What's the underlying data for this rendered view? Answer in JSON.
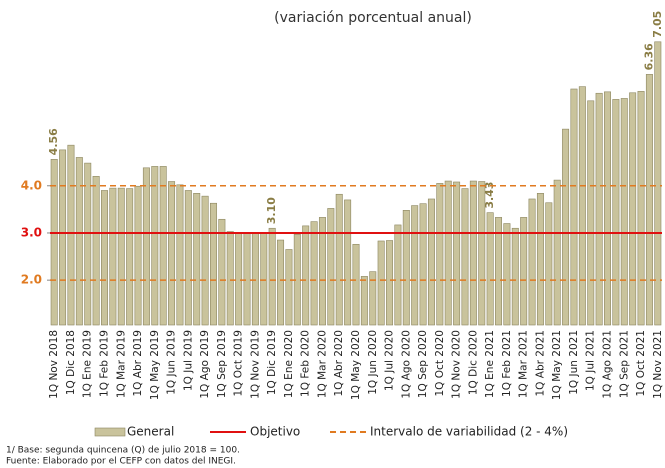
{
  "chart_data": {
    "type": "bar",
    "subtitle": "(variación porcentual anual)",
    "categories": [
      "1Q Nov 2018",
      null,
      "1Q Dic 2018",
      null,
      "1Q Ene 2019",
      null,
      "1Q Feb 2019",
      null,
      "1Q Mar 2019",
      null,
      "1Q Abr 2019",
      null,
      "1Q May 2019",
      null,
      "1Q Jun 2019",
      null,
      "1Q Jul 2019",
      null,
      "1Q Ago 2019",
      null,
      "1Q Sep 2019",
      null,
      "1Q Oct 2019",
      null,
      "1Q Nov 2019",
      null,
      "1Q Dic 2019",
      null,
      "1Q Ene 2020",
      null,
      "1Q Feb 2020",
      null,
      "1Q Mar 2020",
      null,
      "1Q Abr 2020",
      null,
      "1Q May 2020",
      null,
      "1Q Jun 2020",
      null,
      "1Q Jul 2020",
      null,
      "1Q Ago 2020",
      null,
      "1Q Sep 2020",
      null,
      "1Q Oct 2020",
      null,
      "1Q Nov 2020",
      null,
      "1Q Dic 2020",
      null,
      "1Q Ene 2021",
      null,
      "1Q Feb 2021",
      null,
      "1Q Mar 2021",
      null,
      "1Q Abr 2021",
      null,
      "1Q May 2021",
      null,
      "1Q Jun 2021",
      null,
      "1Q Jul 2021",
      null,
      "1Q Ago 2021",
      null,
      "1Q Sep 2021",
      null,
      "1Q Oct 2021",
      null,
      "1Q Nov 2021"
    ],
    "series": [
      {
        "name": "General",
        "color": "#c9c39c",
        "values": [
          4.56,
          4.76,
          4.86,
          4.6,
          4.48,
          4.2,
          3.9,
          3.95,
          3.95,
          3.94,
          3.99,
          4.38,
          4.41,
          4.41,
          4.09,
          4.02,
          3.9,
          3.84,
          3.78,
          3.63,
          3.29,
          3.03,
          2.99,
          2.99,
          3.0,
          3.0,
          3.1,
          2.85,
          2.65,
          2.97,
          3.15,
          3.24,
          3.33,
          3.52,
          3.82,
          3.7,
          2.76,
          2.08,
          2.18,
          2.83,
          2.84,
          3.17,
          3.48,
          3.58,
          3.62,
          3.72,
          4.05,
          4.1,
          4.08,
          3.94,
          4.1,
          4.09,
          3.43,
          3.33,
          3.2,
          3.1,
          3.33,
          3.72,
          3.84,
          3.64,
          4.12,
          5.2,
          6.05,
          6.1,
          5.8,
          5.96,
          5.99,
          5.83,
          5.85,
          5.97,
          6.0,
          6.36,
          7.05
        ],
        "value_labels": [
          "4.56",
          null,
          null,
          null,
          null,
          null,
          null,
          null,
          null,
          null,
          null,
          null,
          null,
          null,
          null,
          null,
          null,
          null,
          null,
          null,
          null,
          null,
          null,
          null,
          null,
          null,
          "3.10",
          null,
          null,
          null,
          null,
          null,
          null,
          null,
          null,
          null,
          null,
          null,
          null,
          null,
          null,
          null,
          null,
          null,
          null,
          null,
          null,
          null,
          null,
          null,
          null,
          null,
          "3.43",
          null,
          null,
          null,
          null,
          null,
          null,
          null,
          null,
          null,
          null,
          null,
          null,
          null,
          null,
          null,
          null,
          null,
          null,
          "6.36",
          "7.05"
        ]
      }
    ],
    "reference_lines": [
      {
        "name": "Objetivo",
        "values": [
          3
        ],
        "color": "#e01010",
        "dashed": false
      },
      {
        "name": "Intervalo de variabilidad (2 - 4%)",
        "values": [
          2,
          4
        ],
        "color": "#e07a20",
        "dashed": true
      }
    ],
    "ylim": [
      1.05,
      7.3
    ],
    "yticks": [
      {
        "value": 2,
        "label": "2.0"
      },
      {
        "value": 3,
        "label": "3.0"
      },
      {
        "value": 4,
        "label": "4.0"
      }
    ],
    "footnotes": [
      "1/ Base: segunda quincena (Q) de julio 2018 = 100.",
      "Fuente: Elaborado por el CEFP con  datos del INEGI."
    ]
  }
}
